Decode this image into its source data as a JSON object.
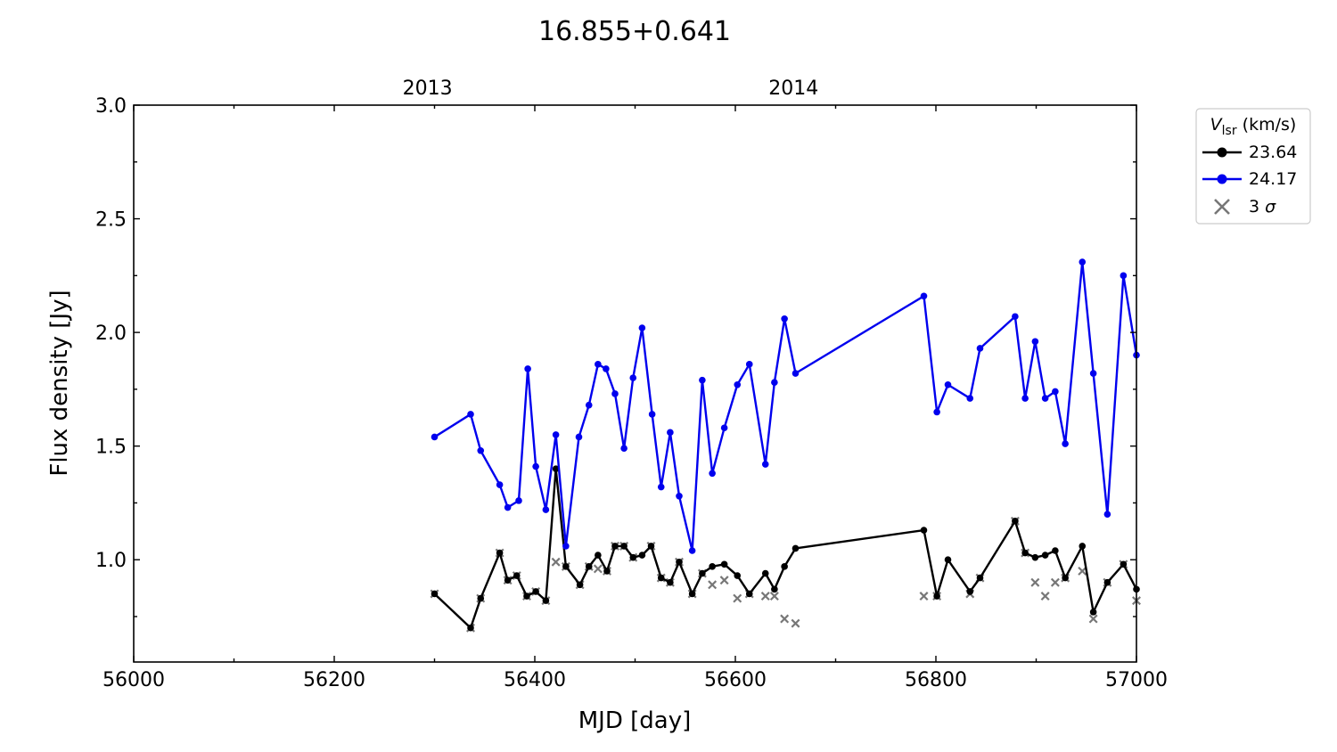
{
  "chart_data": {
    "type": "line",
    "title": "16.855+0.641",
    "xlabel": "MJD [day]",
    "ylabel": "Flux density [Jy]",
    "xlim": [
      56000,
      57000
    ],
    "ylim": [
      0.55,
      3.0
    ],
    "x_ticks": [
      "56000",
      "56200",
      "56400",
      "56600",
      "56800",
      "57000"
    ],
    "y_ticks": [
      "1.0",
      "1.5",
      "2.0",
      "2.5",
      "3.0"
    ],
    "top_axis": {
      "ticks": [
        {
          "label": "2013",
          "mjd": 56293
        },
        {
          "label": "2014",
          "mjd": 56658
        }
      ]
    },
    "grid": false,
    "legend": {
      "placement": "outside-top-right",
      "title_main": "V",
      "title_sub": "lsr",
      "title_rest": " (km/s)",
      "sigma_label": "3",
      "sigma_symbol": "σ"
    },
    "series": [
      {
        "name": "23.64",
        "color": "#000000",
        "x": [
          56300,
          56336,
          56346,
          56365,
          56373,
          56382,
          56392,
          56401,
          56411,
          56421,
          56431,
          56445,
          56454,
          56463,
          56472,
          56480,
          56489,
          56498,
          56507,
          56516,
          56526,
          56535,
          56544,
          56557,
          56567,
          56577,
          56589,
          56602,
          56614,
          56630,
          56639,
          56649,
          56660,
          56788,
          56801,
          56812,
          56834,
          56844,
          56879,
          56889,
          56899,
          56909,
          56919,
          56929,
          56946,
          56957,
          56971,
          56987,
          57000
        ],
        "y": [
          0.85,
          0.7,
          0.83,
          1.03,
          0.91,
          0.93,
          0.84,
          0.86,
          0.82,
          1.4,
          0.97,
          0.89,
          0.97,
          1.02,
          0.95,
          1.06,
          1.06,
          1.01,
          1.02,
          1.06,
          0.92,
          0.9,
          0.99,
          0.85,
          0.94,
          0.97,
          0.98,
          0.93,
          0.85,
          0.94,
          0.87,
          0.97,
          1.05,
          1.13,
          0.84,
          1.0,
          0.86,
          0.92,
          1.17,
          1.03,
          1.01,
          1.02,
          1.04,
          0.92,
          1.06,
          0.77,
          0.9,
          0.98,
          0.87
        ]
      },
      {
        "name": "24.17",
        "color": "#0000ee",
        "x": [
          56300,
          56336,
          56346,
          56365,
          56373,
          56384,
          56393,
          56401,
          56411,
          56421,
          56431,
          56444,
          56454,
          56463,
          56471,
          56480,
          56489,
          56498,
          56507,
          56517,
          56526,
          56535,
          56544,
          56557,
          56567,
          56577,
          56589,
          56602,
          56614,
          56630,
          56639,
          56649,
          56660,
          56788,
          56801,
          56812,
          56834,
          56844,
          56879,
          56889,
          56899,
          56909,
          56919,
          56929,
          56946,
          56957,
          56971,
          56987,
          57000
        ],
        "y": [
          1.54,
          1.64,
          1.48,
          1.33,
          1.23,
          1.26,
          1.84,
          1.41,
          1.22,
          1.55,
          1.06,
          1.54,
          1.68,
          1.86,
          1.84,
          1.73,
          1.49,
          1.8,
          2.02,
          1.64,
          1.32,
          1.56,
          1.28,
          1.04,
          1.79,
          1.38,
          1.58,
          1.77,
          1.86,
          1.42,
          1.78,
          2.06,
          1.82,
          2.16,
          1.65,
          1.77,
          1.71,
          1.93,
          2.07,
          1.71,
          1.96,
          1.71,
          1.74,
          1.51,
          2.31,
          1.82,
          1.2,
          2.25,
          1.9
        ]
      }
    ],
    "sigma_points": {
      "name": "3 σ",
      "color": "#777777",
      "x": [
        56300,
        56336,
        56346,
        56365,
        56373,
        56382,
        56392,
        56401,
        56411,
        56421,
        56431,
        56445,
        56454,
        56463,
        56472,
        56480,
        56489,
        56498,
        56516,
        56526,
        56535,
        56544,
        56557,
        56567,
        56577,
        56589,
        56602,
        56614,
        56630,
        56639,
        56649,
        56660,
        56788,
        56801,
        56834,
        56844,
        56879,
        56889,
        56899,
        56909,
        56919,
        56929,
        56946,
        56957,
        56971,
        56987,
        57000
      ],
      "y": [
        0.85,
        0.7,
        0.83,
        1.03,
        0.91,
        0.93,
        0.84,
        0.86,
        0.82,
        0.99,
        0.97,
        0.89,
        0.97,
        0.96,
        0.95,
        1.06,
        1.06,
        1.01,
        1.06,
        0.92,
        0.9,
        0.99,
        0.85,
        0.94,
        0.89,
        0.91,
        0.83,
        0.85,
        0.84,
        0.84,
        0.74,
        0.72,
        0.84,
        0.84,
        0.85,
        0.92,
        1.17,
        1.03,
        0.9,
        0.84,
        0.9,
        0.92,
        0.95,
        0.74,
        0.9,
        0.98,
        0.82
      ]
    }
  }
}
